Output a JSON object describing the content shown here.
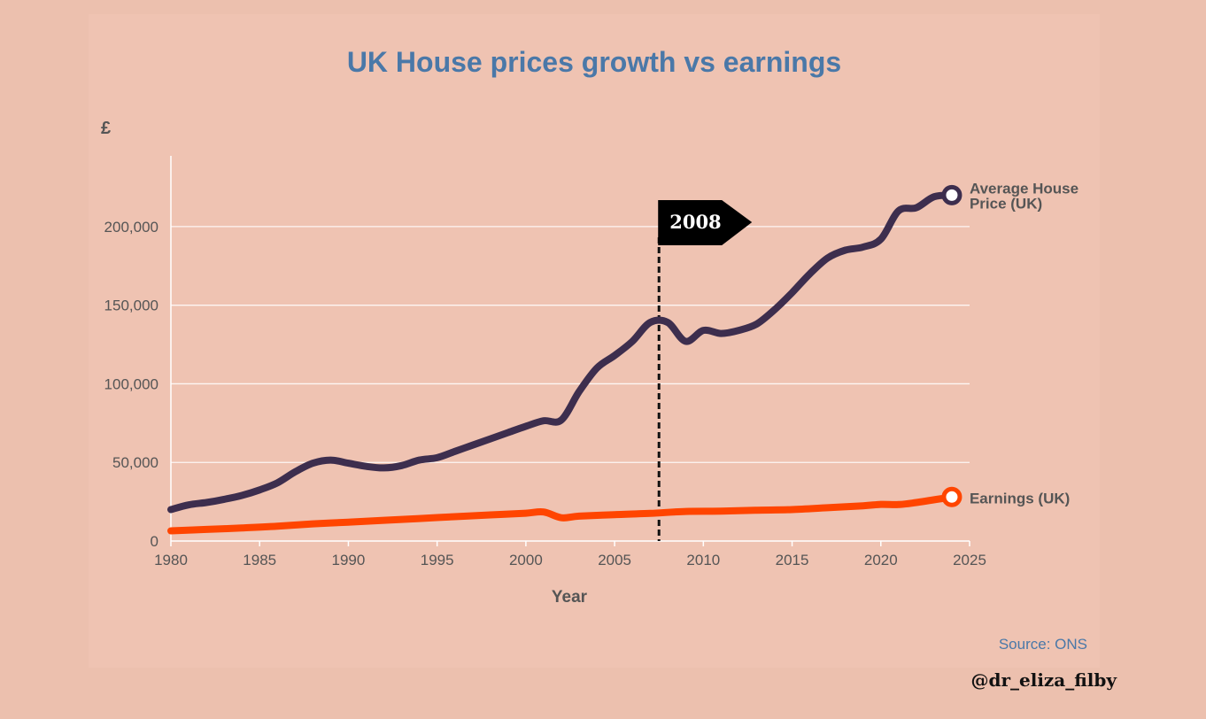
{
  "chart_data": {
    "type": "line",
    "title": "UK House prices growth vs earnings",
    "ylabel": "£",
    "xlabel": "Year",
    "xlim": [
      1980,
      2025
    ],
    "ylim": [
      0,
      245000
    ],
    "x_ticks": [
      1980,
      1985,
      1990,
      1995,
      2000,
      2005,
      2010,
      2015,
      2020,
      2025
    ],
    "y_ticks": [
      0,
      50000,
      100000,
      150000,
      200000
    ],
    "y_tick_labels": [
      "0",
      "50,000",
      "100,000",
      "150,000",
      "200,000"
    ],
    "grid": "horizontal",
    "series": [
      {
        "name": "Average House Price (UK)",
        "label_lines": [
          "Average House",
          "Price (UK)"
        ],
        "color": "#3d2e4e",
        "x": [
          1980,
          1981,
          1982,
          1983,
          1984,
          1985,
          1986,
          1987,
          1988,
          1989,
          1990,
          1991,
          1992,
          1993,
          1994,
          1995,
          1996,
          1997,
          1998,
          1999,
          2000,
          2001,
          2002,
          2003,
          2004,
          2005,
          2006,
          2007,
          2008,
          2009,
          2010,
          2011,
          2012,
          2013,
          2014,
          2015,
          2016,
          2017,
          2018,
          2019,
          2020,
          2021,
          2022,
          2023,
          2024
        ],
        "values": [
          20000,
          23000,
          24500,
          26500,
          29000,
          32500,
          37000,
          44000,
          49500,
          51500,
          49500,
          47500,
          46500,
          48000,
          51500,
          53000,
          57000,
          61000,
          65000,
          69000,
          73000,
          76500,
          77000,
          95000,
          110000,
          118000,
          127000,
          139000,
          139000,
          127000,
          134000,
          132000,
          134000,
          138000,
          147000,
          158000,
          170000,
          180000,
          185000,
          187000,
          192000,
          210000,
          212000,
          219000,
          220000
        ]
      },
      {
        "name": "Earnings (UK)",
        "label_lines": [
          "Earnings (UK)"
        ],
        "color": "#ff4500",
        "x": [
          1980,
          1982,
          1984,
          1986,
          1988,
          1990,
          1992,
          1994,
          1996,
          1998,
          2000,
          2001,
          2002,
          2003,
          2005,
          2007,
          2009,
          2011,
          2013,
          2015,
          2017,
          2019,
          2020,
          2021,
          2022,
          2024
        ],
        "values": [
          6500,
          7400,
          8300,
          9400,
          10900,
          12000,
          13200,
          14300,
          15500,
          16600,
          17700,
          18500,
          14800,
          15800,
          16800,
          17600,
          18800,
          19000,
          19600,
          20000,
          21200,
          22400,
          23300,
          23200,
          24500,
          28000
        ]
      }
    ],
    "annotation": {
      "x": 2007.5,
      "label": "2008"
    }
  },
  "source": "Source: ONS",
  "handle": "@dr_eliza_filby"
}
